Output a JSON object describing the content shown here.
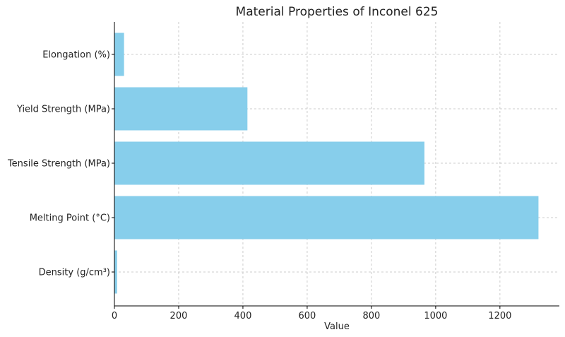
{
  "chart_data": {
    "type": "bar",
    "orientation": "horizontal",
    "title": "Material Properties of Inconel 625",
    "xlabel": "Value",
    "ylabel": "",
    "categories": [
      "Density (g/cm³)",
      "Melting Point (°C)",
      "Tensile Strength (MPa)",
      "Yield Strength (MPa)",
      "Elongation (%)"
    ],
    "values": [
      8.44,
      1320,
      965,
      414,
      30
    ],
    "xlim": [
      0,
      1385
    ],
    "xticks": [
      0,
      200,
      400,
      600,
      800,
      1000,
      1200
    ],
    "grid": true,
    "bar_color": "#87ceeb"
  }
}
